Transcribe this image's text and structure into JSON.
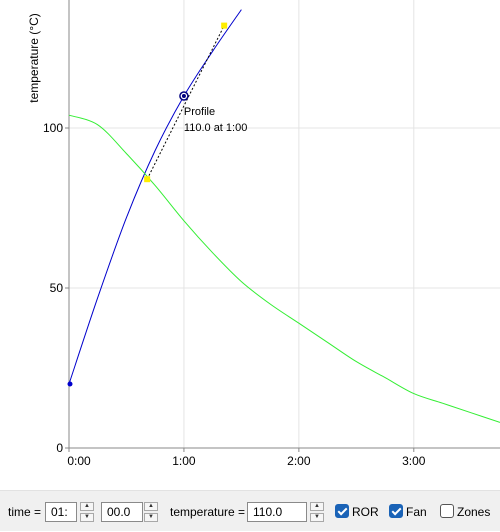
{
  "chart_data": {
    "type": "line",
    "ylabel": "temperature (°C)",
    "xlim": [
      0,
      3.75
    ],
    "ylim": [
      0,
      140
    ],
    "x_ticks": [
      "0:00",
      "1:00",
      "2:00",
      "3:00"
    ],
    "x_tick_values": [
      0,
      1,
      2,
      3
    ],
    "y_ticks": [
      "0",
      "50",
      "100"
    ],
    "y_tick_values": [
      0,
      50,
      100
    ],
    "grid": true,
    "series": [
      {
        "color": "#0000cc",
        "x": [
          0,
          0.25,
          0.5,
          0.75,
          1.0,
          1.25,
          1.5
        ],
        "y": [
          20,
          47,
          72,
          93,
          110,
          124,
          137
        ]
      },
      {
        "color": "#33ee33",
        "x": [
          0,
          0.25,
          0.5,
          0.75,
          1.0,
          1.25,
          1.5,
          1.75,
          2.0,
          2.25,
          2.5,
          2.75,
          3.0,
          3.25,
          3.5,
          3.75
        ],
        "y": [
          104,
          101,
          92,
          82,
          71,
          61,
          52,
          45,
          39,
          33,
          27,
          22,
          17,
          14,
          11,
          8
        ]
      }
    ],
    "selected_point": {
      "x": 1.0,
      "y": 110
    },
    "handles": [
      {
        "x": 0.68,
        "y": 84
      },
      {
        "x": 1.35,
        "y": 132
      }
    ],
    "annotation": {
      "label": "Profile",
      "value": "110.0 at 1:00"
    }
  },
  "toolbar": {
    "time_label": "time =",
    "minutes_value": "01:",
    "seconds_value": "00.0",
    "temperature_label": "temperature =",
    "temperature_value": "110.0",
    "checkboxes": [
      {
        "label": "ROR",
        "checked": true
      },
      {
        "label": "Fan",
        "checked": true
      },
      {
        "label": "Zones",
        "checked": false
      }
    ]
  }
}
